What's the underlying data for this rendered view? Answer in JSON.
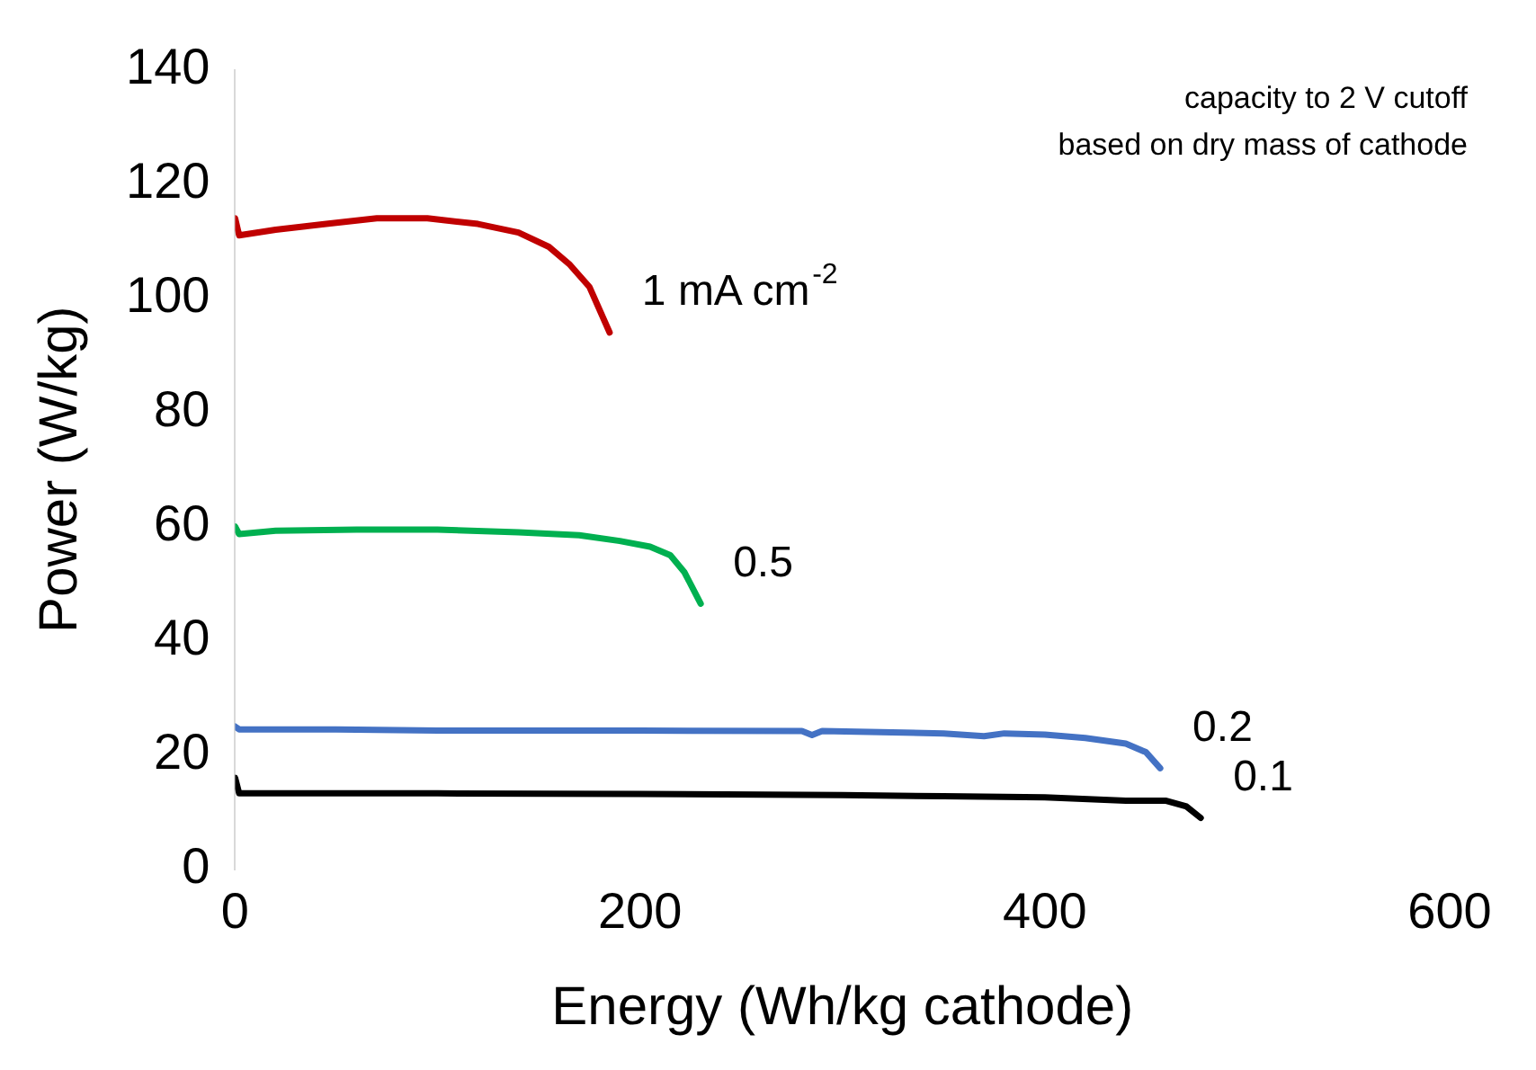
{
  "chart_data": {
    "type": "line",
    "xlabel": "Energy (Wh/kg cathode)",
    "ylabel": "Power (W/kg)",
    "annotations": [
      "capacity to 2 V cutoff",
      "based on dry mass of cathode"
    ],
    "xlim": [
      0,
      600
    ],
    "xticks": [
      0,
      200,
      400,
      600
    ],
    "ylim": [
      0,
      140
    ],
    "yticks": [
      0,
      20,
      40,
      60,
      80,
      100,
      120,
      140
    ],
    "grid": false,
    "legend": false,
    "marker": "none",
    "line_style": "solid",
    "series": [
      {
        "name": "1 mA cm$^{-2}$",
        "color": "#c00000",
        "x": [
          0,
          2,
          20,
          45,
          70,
          95,
          120,
          140,
          155,
          165,
          175,
          185
        ],
        "values": [
          114,
          111,
          112,
          113,
          114,
          114,
          113,
          111.5,
          109,
          106,
          102,
          94
        ]
      },
      {
        "name": "0.5",
        "color": "#00b050",
        "x": [
          0,
          2,
          20,
          60,
          100,
          140,
          170,
          190,
          205,
          215,
          222,
          230
        ],
        "values": [
          60,
          58.7,
          59.3,
          59.5,
          59.5,
          59,
          58.5,
          57.5,
          56.5,
          55,
          52,
          46.5
        ]
      },
      {
        "name": "0.2",
        "color": "#4472c4",
        "x": [
          0,
          2,
          50,
          100,
          200,
          280,
          285,
          290,
          350,
          370,
          380,
          400,
          420,
          440,
          450,
          457
        ],
        "values": [
          25,
          24.5,
          24.5,
          24.3,
          24.3,
          24.2,
          23.5,
          24.2,
          23.8,
          23.3,
          23.8,
          23.6,
          23,
          22,
          20.5,
          17.7
        ]
      },
      {
        "name": "0.1",
        "color": "#000000",
        "x": [
          0,
          2,
          50,
          100,
          200,
          300,
          350,
          400,
          440,
          460,
          470,
          477
        ],
        "values": [
          16,
          13.3,
          13.3,
          13.3,
          13.2,
          13,
          12.8,
          12.6,
          12,
          12,
          11,
          9
        ]
      }
    ]
  }
}
